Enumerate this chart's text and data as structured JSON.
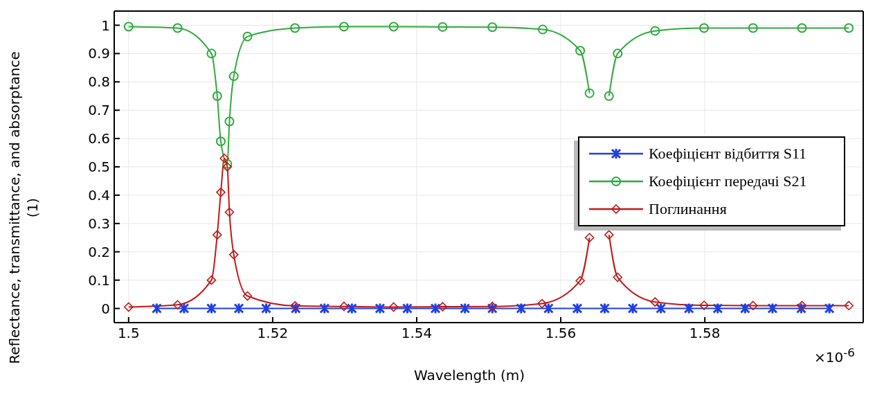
{
  "chart_data": {
    "type": "line",
    "xlabel": "Wavelength (m)",
    "ylabel": "Reflectance, transmittance, and absorptance (1)",
    "annotations": [
      "×10$^{-6}$"
    ],
    "xlim": [
      1.498,
      1.602
    ],
    "xticks": [
      1.5,
      1.52,
      1.54,
      1.56,
      1.58
    ],
    "ylim": [
      -0.05,
      1.05
    ],
    "yticks": [
      0,
      0.1,
      0.2,
      0.3,
      0.4,
      0.5,
      0.6,
      0.7,
      0.8,
      0.9,
      1
    ],
    "grid": true,
    "legend": "right",
    "line_style": "solid",
    "series": [
      {
        "name": "Коефіцієнт відбиття S11",
        "color": "#1f3fe0",
        "marker": "cross",
        "x": [
          1.5039,
          1.5077,
          1.5115,
          1.5153,
          1.5191,
          1.5232,
          1.5272,
          1.531,
          1.5349,
          1.5387,
          1.5426,
          1.5467,
          1.5505,
          1.5545,
          1.5583,
          1.5623,
          1.5661,
          1.57,
          1.5739,
          1.5778,
          1.5818,
          1.5856,
          1.5894,
          1.5934,
          1.5973
        ],
        "values": [
          0,
          0,
          0,
          0,
          0,
          0,
          0,
          0,
          0,
          0,
          0,
          0,
          0,
          0,
          0,
          0,
          0,
          0,
          0,
          0,
          0,
          0,
          0,
          0,
          0
        ]
      },
      {
        "name": "Коефіцієнт передачі S21",
        "color": "#2eaa3c",
        "marker": "circle",
        "x": [
          1.5,
          1.5068,
          1.5115,
          1.5123,
          1.5128,
          1.5137,
          1.514,
          1.5146,
          1.5165,
          1.5231,
          1.5299,
          1.5368,
          1.5436,
          1.5505,
          1.5575,
          1.5627,
          1.564,
          1.5653,
          1.5667,
          1.5679,
          1.5731,
          1.5799,
          1.5867,
          1.5935,
          1.6
        ],
        "values": [
          0.995,
          0.99,
          0.9,
          0.75,
          0.59,
          0.51,
          0.66,
          0.82,
          0.96,
          0.99,
          0.995,
          0.995,
          0.994,
          0.993,
          0.985,
          0.91,
          0.76,
          null,
          0.75,
          0.9,
          0.98,
          0.99,
          0.99,
          0.99,
          0.99
        ]
      },
      {
        "name": "Поглинання",
        "color": "#c01818",
        "marker": "diamond",
        "x": [
          1.5,
          1.5068,
          1.5115,
          1.5123,
          1.5128,
          1.5133,
          1.5137,
          1.514,
          1.5146,
          1.5165,
          1.5231,
          1.5299,
          1.5368,
          1.5436,
          1.5505,
          1.5574,
          1.5627,
          1.564,
          1.5653,
          1.5667,
          1.5679,
          1.5731,
          1.5799,
          1.5867,
          1.5935,
          1.6
        ],
        "values": [
          0.005,
          0.013,
          0.1,
          0.26,
          0.41,
          0.53,
          0.5,
          0.34,
          0.19,
          0.044,
          0.009,
          0.007,
          0.005,
          0.006,
          0.007,
          0.017,
          0.098,
          0.25,
          null,
          0.26,
          0.11,
          0.023,
          0.011,
          0.01,
          0.01,
          0.01
        ]
      }
    ]
  }
}
